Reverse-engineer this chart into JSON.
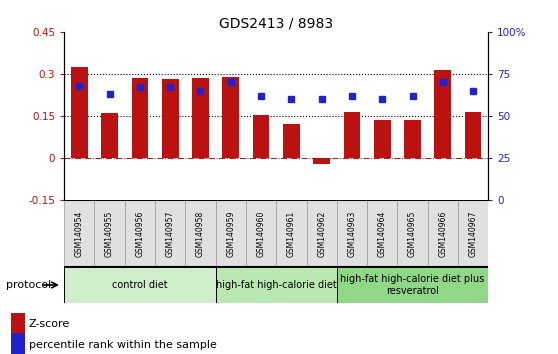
{
  "title": "GDS2413 / 8983",
  "samples": [
    "GSM140954",
    "GSM140955",
    "GSM140956",
    "GSM140957",
    "GSM140958",
    "GSM140959",
    "GSM140960",
    "GSM140961",
    "GSM140962",
    "GSM140963",
    "GSM140964",
    "GSM140965",
    "GSM140966",
    "GSM140967"
  ],
  "z_scores": [
    0.325,
    0.16,
    0.285,
    0.282,
    0.285,
    0.29,
    0.155,
    0.12,
    -0.02,
    0.165,
    0.135,
    0.135,
    0.315,
    0.165
  ],
  "percentile_ranks": [
    68,
    63,
    67,
    67,
    65,
    70,
    62,
    60,
    60,
    62,
    60,
    62,
    70,
    65
  ],
  "bar_color": "#BB1111",
  "blue_color": "#2222CC",
  "ylim_left": [
    -0.15,
    0.45
  ],
  "ylim_right": [
    0,
    100
  ],
  "yticks_left": [
    -0.15,
    0,
    0.15,
    0.3,
    0.45
  ],
  "ytick_labels_left": [
    "-0.15",
    "0",
    "0.15",
    "0.3",
    "0.45"
  ],
  "yticks_right": [
    0,
    25,
    50,
    75,
    100
  ],
  "ytick_labels_right": [
    "0",
    "25",
    "50",
    "75",
    "100%"
  ],
  "hline_values": [
    0.15,
    0.3
  ],
  "zero_line": 0,
  "groups": [
    {
      "label": "control diet",
      "start": 0,
      "end": 5,
      "color": "#d0eecc"
    },
    {
      "label": "high-fat high-calorie diet",
      "start": 5,
      "end": 9,
      "color": "#b8e8b0"
    },
    {
      "label": "high-fat high-calorie diet plus\nresveratrol",
      "start": 9,
      "end": 14,
      "color": "#90d888"
    }
  ],
  "legend_zscore": "Z-score",
  "legend_pct": "percentile rank within the sample",
  "protocol_label": "protocol",
  "bar_width": 0.55
}
